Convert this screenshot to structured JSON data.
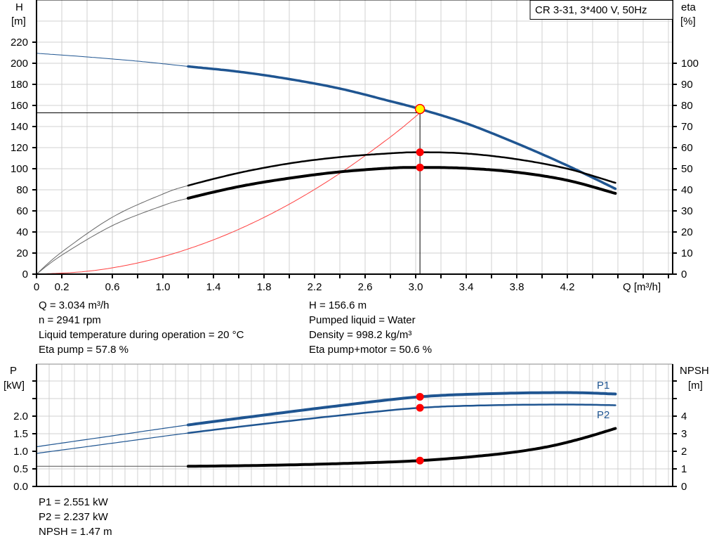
{
  "chart_data": [
    {
      "type": "line",
      "legend_box": "CR 3-31, 3*400 V, 50Hz",
      "xlabel": "Q [m³/h]",
      "ylabel_left": {
        "name": "H",
        "unit": "[m]"
      },
      "ylabel_right": {
        "name": "eta",
        "unit": "[%]"
      },
      "xlim": [
        0,
        5.04
      ],
      "ylim_left": [
        0,
        260
      ],
      "ylim_right": [
        0,
        130
      ],
      "x_ticks": [
        0,
        0.2,
        0.6,
        1.0,
        1.4,
        1.8,
        2.2,
        2.6,
        3.0,
        3.4,
        3.8,
        4.2
      ],
      "x_tick_labels": [
        "0",
        "0.2",
        "0.6",
        "1.0",
        "1.4",
        "1.8",
        "2.2",
        "2.6",
        "3.0",
        "3.4",
        "3.8",
        "4.2"
      ],
      "y_left_ticks": [
        0,
        20,
        40,
        60,
        80,
        100,
        120,
        140,
        160,
        180,
        200,
        220
      ],
      "y_right_ticks": [
        0,
        10,
        20,
        30,
        40,
        50,
        60,
        70,
        80,
        90,
        100
      ],
      "grid": true,
      "series": [
        {
          "id": "H",
          "axis": "left",
          "color": "#1f5591",
          "thick_from": 1.2,
          "x": [
            0,
            0.4,
            0.8,
            1.2,
            1.6,
            2.0,
            2.4,
            2.8,
            3.034,
            3.4,
            3.8,
            4.2,
            4.58
          ],
          "y": [
            209.5,
            206,
            202,
            197,
            192,
            185,
            176,
            164,
            156.6,
            143,
            124,
            103,
            81
          ]
        },
        {
          "id": "eta_pump",
          "axis": "right",
          "color": "#000000",
          "thick_from": 1.2,
          "x": [
            0,
            0.2,
            0.6,
            1.0,
            1.2,
            1.6,
            2.0,
            2.4,
            2.8,
            3.034,
            3.4,
            3.8,
            4.2,
            4.58
          ],
          "y": [
            0,
            10.5,
            27,
            38,
            42,
            48,
            52.5,
            55.5,
            57.3,
            57.8,
            57.2,
            54.5,
            50,
            43.3
          ]
        },
        {
          "id": "eta_pump_motor",
          "axis": "right",
          "color": "#000000",
          "thick_from": 1.2,
          "x": [
            0,
            0.2,
            0.6,
            1.0,
            1.2,
            1.6,
            2.0,
            2.4,
            2.8,
            3.034,
            3.4,
            3.8,
            4.2,
            4.58
          ],
          "y": [
            0,
            9,
            23,
            32.5,
            36,
            41.5,
            45.5,
            48.5,
            50.3,
            50.6,
            50.2,
            48.3,
            44.5,
            38.3
          ]
        },
        {
          "id": "system_curve",
          "axis": "left",
          "color": "#ff4040",
          "x": [
            0,
            0.4,
            0.8,
            1.2,
            1.6,
            2.0,
            2.4,
            2.8,
            3.034
          ],
          "y": [
            0,
            2.7,
            10.6,
            23.9,
            42.5,
            66.4,
            95.6,
            130.1,
            153
          ]
        }
      ],
      "operating_point": {
        "Q": 3.034,
        "H": 156.6,
        "H_ref": 153,
        "eta_pump": 57.8,
        "eta_pump_motor": 50.6
      }
    },
    {
      "type": "line",
      "ylabel_left": {
        "name": "P",
        "unit": "[kW]"
      },
      "ylabel_right": {
        "name": "NPSH",
        "unit": "[m]"
      },
      "xlim": [
        0,
        5.04
      ],
      "ylim_left": [
        0,
        3.48
      ],
      "ylim_right": [
        0,
        6.96
      ],
      "y_left_ticks": [
        "0.0",
        "0.5",
        "1.0",
        "1.5",
        "2.0"
      ],
      "y_right_ticks": [
        "0",
        "1",
        "2",
        "3",
        "4"
      ],
      "grid": true,
      "series": [
        {
          "id": "P1",
          "name": "P1",
          "axis": "left",
          "color": "#1f5591",
          "thick_from": 1.2,
          "x": [
            0,
            0.6,
            1.2,
            1.8,
            2.4,
            3.034,
            3.6,
            4.2,
            4.58
          ],
          "y": [
            1.13,
            1.44,
            1.75,
            2.03,
            2.3,
            2.551,
            2.64,
            2.67,
            2.63
          ]
        },
        {
          "id": "P2",
          "name": "P2",
          "axis": "left",
          "color": "#1f5591",
          "thick_from": 1.2,
          "x": [
            0,
            0.6,
            1.2,
            1.8,
            2.4,
            3.034,
            3.6,
            4.2,
            4.58
          ],
          "y": [
            0.94,
            1.23,
            1.52,
            1.78,
            2.02,
            2.237,
            2.31,
            2.33,
            2.31
          ]
        },
        {
          "id": "NPSH",
          "axis": "right",
          "color": "#000000",
          "thick_from": 1.2,
          "x": [
            0,
            0.6,
            1.2,
            1.8,
            2.4,
            3.034,
            3.6,
            4.0,
            4.3,
            4.58
          ],
          "y": [
            1.15,
            1.15,
            1.15,
            1.2,
            1.3,
            1.47,
            1.8,
            2.2,
            2.7,
            3.3
          ]
        }
      ],
      "operating_point": {
        "Q": 3.034,
        "P1": 2.551,
        "P2": 2.237,
        "NPSH": 1.47
      }
    }
  ],
  "info_top_left": [
    "Q = 3.034 m³/h",
    "n = 2941 rpm",
    "Liquid temperature during operation = 20 °C",
    "Eta pump = 57.8 %"
  ],
  "info_top_right": [
    "H = 156.6 m",
    "Pumped liquid = Water",
    "Density = 998.2 kg/m³",
    "Eta pump+motor = 50.6 %"
  ],
  "info_bottom": [
    "P1 = 2.551 kW",
    "P2 = 2.237 kW",
    "NPSH = 1.47 m"
  ],
  "colors": {
    "grid": "#d0d0d0",
    "curve_blue": "#1f5591",
    "marker_red": "#ff0000",
    "marker_yellow": "#ffff00",
    "system_curve": "#ff4040"
  }
}
